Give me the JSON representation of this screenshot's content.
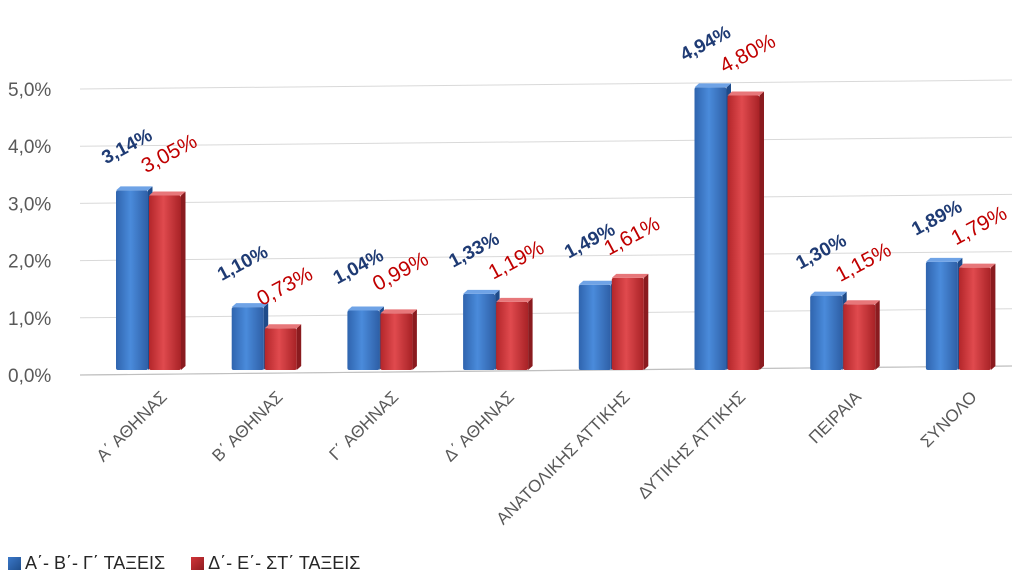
{
  "chart_data": {
    "type": "bar",
    "title": "",
    "xlabel": "",
    "ylabel": "",
    "ylim": [
      0,
      5
    ],
    "yticks": [
      "0,0%",
      "1,0%",
      "2,0%",
      "3,0%",
      "4,0%",
      "5,0%"
    ],
    "grid": true,
    "legend_position": "bottom-left",
    "categories": [
      "Α΄ ΑΘΗΝΑΣ",
      "Β΄ ΑΘΗΝΑΣ",
      "Γ΄ ΑΘΗΝΑΣ",
      "Δ΄ ΑΘΗΝΑΣ",
      "ΑΝΑΤΟΛΙΚΗΣ ΑΤΤΙΚΗΣ",
      "ΔΥΤΙΚΗΣ ΑΤΤΙΚΗΣ",
      "ΠΕΙΡΑΙΑ",
      "ΣΥΝΟΛΟ"
    ],
    "series": [
      {
        "name": "Α΄- Β΄- Γ΄  ΤΑΞΕΙΣ",
        "color": "#3A78C9",
        "label_color": "#1F3B74",
        "values": [
          3.14,
          1.1,
          1.04,
          1.33,
          1.49,
          4.94,
          1.3,
          1.89
        ],
        "labels": [
          "3,14%",
          "1,10%",
          "1,04%",
          "1,33%",
          "1,49%",
          "4,94%",
          "1,30%",
          "1,89%"
        ]
      },
      {
        "name": "Δ΄- Ε΄- ΣΤ΄ ΤΑΞΕΙΣ",
        "color": "#D13438",
        "label_color": "#C00000",
        "values": [
          3.05,
          0.73,
          0.99,
          1.19,
          1.61,
          4.8,
          1.15,
          1.79
        ],
        "labels": [
          "3,05%",
          "0,73%",
          "0,99%",
          "1,19%",
          "1,61%",
          "4,80%",
          "1,15%",
          "1,79%"
        ]
      }
    ]
  }
}
